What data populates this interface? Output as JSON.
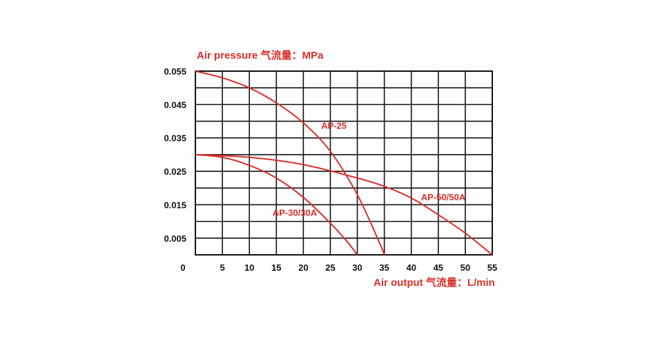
{
  "chart_data": {
    "type": "line",
    "ylabel": "Air pressure 气流量：MPa",
    "xlabel": "Air output 气流量：L/min",
    "xlim": [
      0,
      55
    ],
    "ylim": [
      0,
      0.055
    ],
    "x_ticks": [
      "0",
      "5",
      "10",
      "15",
      "20",
      "25",
      "30",
      "35",
      "40",
      "45",
      "50",
      "55"
    ],
    "y_ticks": [
      "0.055",
      "0.045",
      "0.035",
      "0.025",
      "0.015",
      "0.005"
    ],
    "x_grid_step": 5,
    "y_grid_step": 0.005,
    "grid": true,
    "series": [
      {
        "name": "AP-25",
        "x": [
          0,
          5,
          10,
          15,
          20,
          25,
          30,
          34,
          35
        ],
        "y": [
          0.055,
          0.053,
          0.05,
          0.0455,
          0.0395,
          0.031,
          0.018,
          0.004,
          0.0
        ]
      },
      {
        "name": "AP-30/30A",
        "x": [
          0,
          5,
          10,
          15,
          20,
          25,
          28,
          30
        ],
        "y": [
          0.03,
          0.0292,
          0.0268,
          0.023,
          0.0172,
          0.0095,
          0.0042,
          0.0
        ]
      },
      {
        "name": "AP-50/50A",
        "x": [
          0,
          10,
          20,
          30,
          35,
          40,
          45,
          50,
          55
        ],
        "y": [
          0.03,
          0.0292,
          0.027,
          0.023,
          0.0205,
          0.017,
          0.012,
          0.0065,
          0.0
        ]
      }
    ]
  },
  "colors": {
    "curve": "#d9302b",
    "label": "#d9302b",
    "grid": "#111111"
  }
}
